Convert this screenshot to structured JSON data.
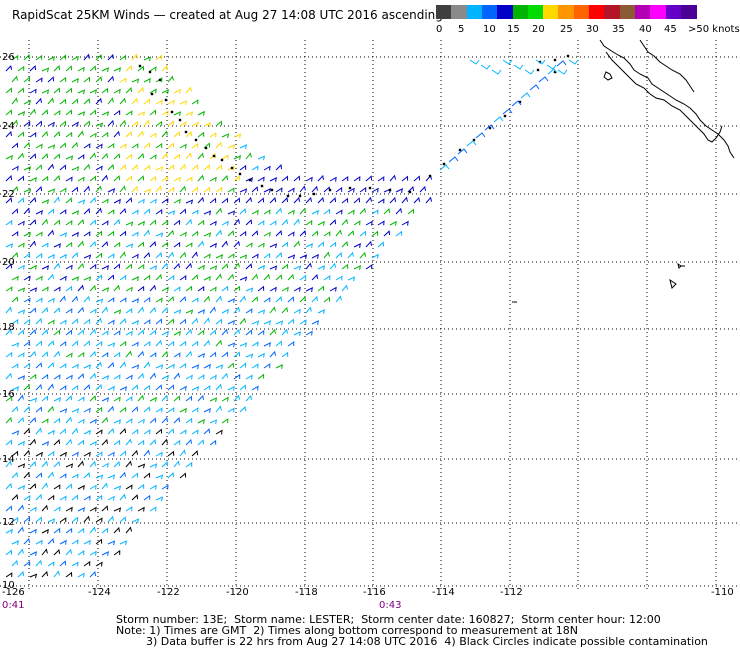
{
  "title": "RapidScat 25KM Winds — created at Aug 27 14:08 UTC 2016 ascending",
  "colorbar": {
    "colors": [
      "#404040",
      "#8a8a8a",
      "#00b4ff",
      "#0064ff",
      "#0000c8",
      "#00b400",
      "#00dc00",
      "#ffd800",
      "#ff9600",
      "#ff6400",
      "#ff0000",
      "#b41428",
      "#8c5a32",
      "#b400b4",
      "#ff00ff",
      "#6400c8",
      "#4b0096"
    ],
    "labels": [
      "0",
      "5",
      "10",
      "15",
      "20",
      "25",
      "30",
      "35",
      "40",
      "45",
      ">50 knots"
    ]
  },
  "map": {
    "lat_range": [
      10,
      26
    ],
    "lon_range": [
      -126,
      -110
    ],
    "lat_labels": [
      "26",
      "24",
      "22",
      "20",
      "18",
      "16",
      "14",
      "12",
      "10"
    ],
    "lon_labels": [
      "-126",
      "-124",
      "-122",
      "-120",
      "-118",
      "-116",
      "-114",
      "-112",
      "-110"
    ],
    "time_labels": [
      "0:41",
      "0:43"
    ],
    "grid": true
  },
  "footer": {
    "line1": "Storm number: 13E;  Storm name: LESTER;  Storm center date: 160827;  Storm center hour: 12:00",
    "line2": "Note: 1) Times are GMT  2) Times along bottom correspond to measurement at 18N",
    "line3": "3) Data buffer is 22 hrs from Aug 27 14:08 UTC 2016  4) Black Circles indicate possible contamination"
  }
}
